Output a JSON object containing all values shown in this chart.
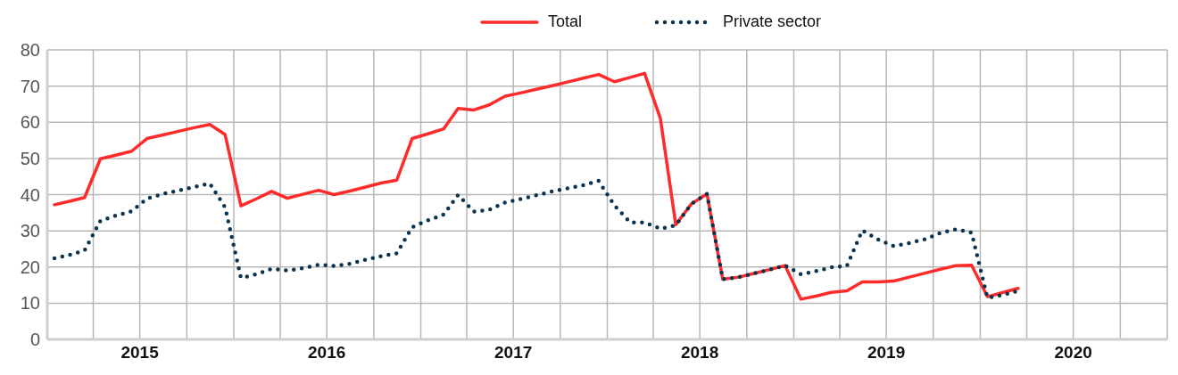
{
  "chart_data": {
    "type": "line",
    "marker": "none",
    "grid": true,
    "legend": "top",
    "x": [
      "2015-01-15",
      "2015-02-15",
      "2015-03-15",
      "2015-04-15",
      "2015-05-15",
      "2015-06-15",
      "2015-07-15",
      "2015-08-15",
      "2015-09-15",
      "2015-10-15",
      "2015-11-15",
      "2015-12-15",
      "2016-01-15",
      "2016-02-15",
      "2016-03-15",
      "2016-04-15",
      "2016-05-15",
      "2016-06-15",
      "2016-07-15",
      "2016-08-15",
      "2016-09-15",
      "2016-10-15",
      "2016-11-15",
      "2016-12-15",
      "2017-01-15",
      "2017-02-15",
      "2017-03-15",
      "2017-04-15",
      "2017-05-15",
      "2017-06-15",
      "2017-07-15",
      "2017-08-15",
      "2017-09-15",
      "2017-10-15",
      "2017-11-15",
      "2017-12-15",
      "2018-01-15",
      "2018-02-15",
      "2018-03-15",
      "2018-04-15",
      "2018-05-15",
      "2018-06-15",
      "2018-07-15",
      "2018-08-15",
      "2018-09-15",
      "2018-10-15",
      "2018-11-15",
      "2018-12-15",
      "2019-01-15",
      "2019-02-15",
      "2019-03-15",
      "2019-04-15",
      "2019-05-15",
      "2019-06-15",
      "2019-07-15",
      "2019-08-15",
      "2019-09-15",
      "2019-10-15",
      "2019-11-15",
      "2019-12-15",
      "2020-01-15",
      "2020-02-15",
      "2020-03-15"
    ],
    "xlim": [
      "2015-01-01",
      "2021-01-01"
    ],
    "xticks": [
      {
        "value": "2015-04-01",
        "label": null
      },
      {
        "value": "2015-07-01",
        "label": "2015"
      },
      {
        "value": "2015-10-01",
        "label": null
      },
      {
        "value": "2016-01-01",
        "label": null
      },
      {
        "value": "2016-04-01",
        "label": null
      },
      {
        "value": "2016-07-01",
        "label": "2016"
      },
      {
        "value": "2016-10-01",
        "label": null
      },
      {
        "value": "2017-01-01",
        "label": null
      },
      {
        "value": "2017-04-01",
        "label": null
      },
      {
        "value": "2017-07-01",
        "label": "2017"
      },
      {
        "value": "2017-10-01",
        "label": null
      },
      {
        "value": "2018-01-01",
        "label": null
      },
      {
        "value": "2018-04-01",
        "label": null
      },
      {
        "value": "2018-07-01",
        "label": "2018"
      },
      {
        "value": "2018-10-01",
        "label": null
      },
      {
        "value": "2019-01-01",
        "label": null
      },
      {
        "value": "2019-04-01",
        "label": null
      },
      {
        "value": "2019-07-01",
        "label": "2019"
      },
      {
        "value": "2019-10-01",
        "label": null
      },
      {
        "value": "2020-01-01",
        "label": null
      },
      {
        "value": "2020-04-01",
        "label": null
      },
      {
        "value": "2020-07-01",
        "label": "2020"
      },
      {
        "value": "2020-10-01",
        "label": null
      }
    ],
    "ylim": [
      0,
      80
    ],
    "yticks": [
      0,
      10,
      20,
      30,
      40,
      50,
      60,
      70,
      80
    ],
    "series": [
      {
        "name": "Total",
        "color": "#ff2b2b",
        "line_style": "solid",
        "values": [
          37.2,
          38.2,
          39.2,
          49.9,
          50.9,
          52,
          55.5,
          56.5,
          57.5,
          58.5,
          59.4,
          56.6,
          36.9,
          38.9,
          40.9,
          39,
          40.1,
          41.2,
          40,
          41,
          42.1,
          43.2,
          44,
          55.5,
          56.8,
          58.2,
          63.8,
          63.4,
          64.8,
          67.2,
          68.1,
          69.1,
          70.1,
          71.1,
          72.2,
          73.2,
          71.2,
          72.4,
          73.5,
          61,
          31.7,
          37.5,
          40.2,
          16.6,
          17.2,
          18.2,
          19.3,
          20.4,
          11.1,
          12,
          13,
          13.4,
          15.9,
          15.9,
          16.1,
          17.2,
          18.3,
          19.4,
          20.4,
          20.5,
          11.8,
          13,
          14.1
        ]
      },
      {
        "name": "Private sector",
        "color": "#0a3350",
        "line_style": "dotted",
        "values": [
          22.4,
          23.4,
          24.6,
          32.8,
          34.2,
          35.4,
          38.9,
          40.2,
          41.1,
          42.1,
          43.1,
          36.5,
          17,
          18,
          19.5,
          19,
          19.7,
          20.6,
          20.3,
          20.9,
          22,
          23,
          23.8,
          31,
          32.9,
          34.5,
          39.9,
          35.3,
          35.8,
          37.8,
          38.8,
          39.8,
          40.9,
          41.7,
          42.6,
          43.8,
          37,
          32.3,
          32.3,
          30.6,
          31.5,
          37.5,
          40.2,
          16.6,
          17.2,
          18.2,
          19.3,
          20.4,
          18,
          18.9,
          19.9,
          20.3,
          30.1,
          27.6,
          25.8,
          26.6,
          27.7,
          29.4,
          30.4,
          29.5,
          11.5,
          12.3,
          13.4
        ]
      }
    ]
  }
}
